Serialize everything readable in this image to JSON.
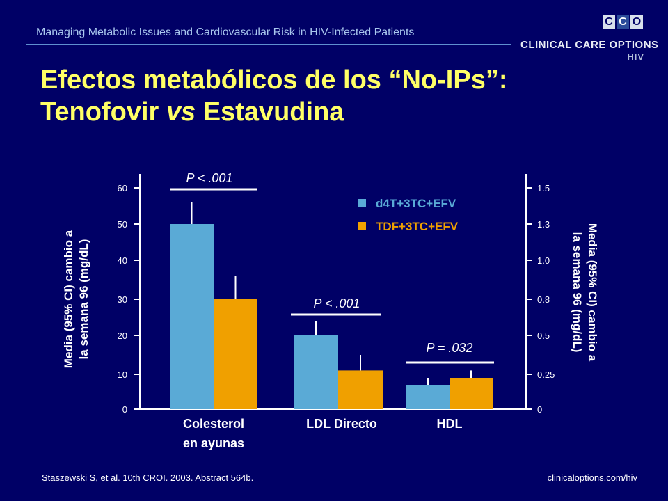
{
  "header": {
    "text": "Managing Metabolic Issues and Cardiovascular Risk in HIV-Infected Patients"
  },
  "logo": {
    "boxes": [
      "C",
      "C",
      "O"
    ],
    "text": "CLINICAL CARE OPTIONS",
    "sub": "HIV"
  },
  "title": {
    "line1": "Efectos metabólicos de los “No-IPs”:",
    "line2_a": "Tenofovir ",
    "line2_b": "vs",
    "line2_c": " Estavudina"
  },
  "footer": {
    "citation": "Staszewski S, et al. 10th CROI. 2003. Abstract 564b.",
    "url": "clinicaloptions.com/hiv"
  },
  "colors": {
    "background": "#000066",
    "title": "#ffff66",
    "d4t": "#5aaad6",
    "tdf": "#f0a000",
    "text": "#ffffff"
  },
  "chart_data": {
    "type": "bar",
    "categories": [
      [
        "Colesterol",
        "en ayunas"
      ],
      [
        "LDL Directo"
      ],
      [
        "HDL"
      ]
    ],
    "series": [
      {
        "name": "d4T+3TC+EFV",
        "values": [
          50,
          20,
          7
        ],
        "ci_upper": [
          56,
          24,
          9
        ],
        "color": "#5aaad6"
      },
      {
        "name": "TDF+3TC+EFV",
        "values": [
          30,
          11,
          9
        ],
        "ci_upper": [
          36,
          15,
          11
        ],
        "color": "#f0a000"
      }
    ],
    "ylabel_left": [
      "Media (95% CI) cambio a",
      "la semana 96 (mg/dL)"
    ],
    "ylabel_right": [
      "Media (95% CI) cambio a",
      "la semana 96 (mg/dL)"
    ],
    "ylim_left": [
      0,
      60
    ],
    "ylim_right": [
      0,
      1.5
    ],
    "left_ticks": [
      0,
      10,
      20,
      30,
      40,
      50,
      60
    ],
    "right_ticks": [
      "0",
      "0.25",
      "0.5",
      "0.8",
      "1.0",
      "1.3",
      "1.5"
    ],
    "pvalues": [
      {
        "label": "P < .001",
        "category": 0
      },
      {
        "label": "P < .001",
        "category": 1
      },
      {
        "label": "P = .032",
        "category": 2
      }
    ],
    "legend_position": "top-right",
    "grid": false
  }
}
